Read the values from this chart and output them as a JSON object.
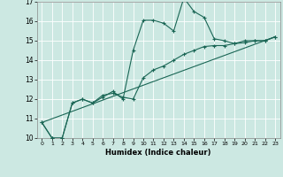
{
  "xlabel": "Humidex (Indice chaleur)",
  "xlim": [
    -0.5,
    23.5
  ],
  "ylim": [
    10,
    17
  ],
  "yticks": [
    10,
    11,
    12,
    13,
    14,
    15,
    16,
    17
  ],
  "xticks": [
    0,
    1,
    2,
    3,
    4,
    5,
    6,
    7,
    8,
    9,
    10,
    11,
    12,
    13,
    14,
    15,
    16,
    17,
    18,
    19,
    20,
    21,
    22,
    23
  ],
  "bg_color": "#cce8e2",
  "line_color": "#1a6655",
  "grid_color": "#ffffff",
  "line1_x": [
    0,
    1,
    2,
    3,
    4,
    5,
    6,
    7,
    8,
    9,
    10,
    11,
    12,
    13,
    14,
    15,
    16,
    17,
    18,
    19,
    20,
    21,
    22,
    23
  ],
  "line1_y": [
    10.8,
    10.0,
    10.0,
    11.8,
    12.0,
    11.8,
    12.1,
    12.4,
    12.0,
    14.5,
    16.05,
    16.05,
    15.9,
    15.5,
    17.2,
    16.5,
    16.2,
    15.1,
    15.0,
    14.85,
    14.9,
    15.0,
    15.0,
    15.2
  ],
  "line2_x": [
    0,
    1,
    2,
    3,
    4,
    5,
    6,
    7,
    8,
    9,
    10,
    11,
    12,
    13,
    14,
    15,
    16,
    17,
    18,
    19,
    20,
    21,
    22,
    23
  ],
  "line2_y": [
    10.8,
    10.0,
    10.0,
    11.8,
    12.0,
    11.8,
    12.2,
    12.3,
    12.1,
    12.0,
    13.1,
    13.5,
    13.7,
    14.0,
    14.3,
    14.5,
    14.7,
    14.75,
    14.75,
    14.85,
    15.0,
    15.0,
    15.0,
    15.2
  ],
  "line3_x": [
    0,
    23
  ],
  "line3_y": [
    10.8,
    15.2
  ]
}
